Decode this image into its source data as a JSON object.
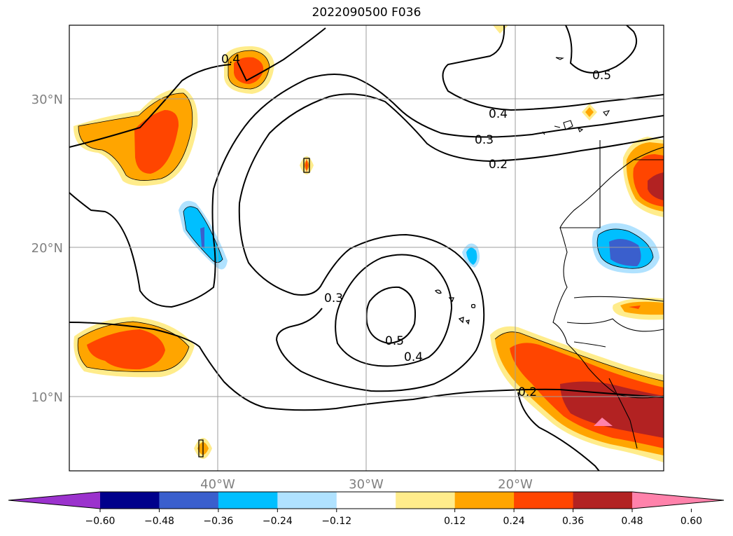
{
  "title": "2022090500 F036",
  "lat_labels": [
    "30°N",
    "20°N",
    "10°N"
  ],
  "lon_labels": [
    "40°W",
    "30°W",
    "20°W"
  ],
  "contour_labels": [
    "0.4",
    "0.5",
    "0.4",
    "0.3",
    "0.2",
    "0.3",
    "0.5",
    "0.4",
    "0.2"
  ],
  "colorbar": {
    "colors": [
      "#9b32cd",
      "#00008b",
      "#3a5fcd",
      "#00bfff",
      "#b0e2ff",
      "#ffffff",
      "#ffec8b",
      "#ffa500",
      "#ff4500",
      "#b22222",
      "#ff82ab"
    ],
    "ticks": [
      "−0.60",
      "−0.48",
      "−0.36",
      "−0.24",
      "−0.12",
      "0.12",
      "0.24",
      "0.36",
      "0.48",
      "0.60"
    ]
  },
  "map_extent": {
    "lon_min": -50,
    "lon_max": -10,
    "lat_min": 5,
    "lat_max": 35
  }
}
